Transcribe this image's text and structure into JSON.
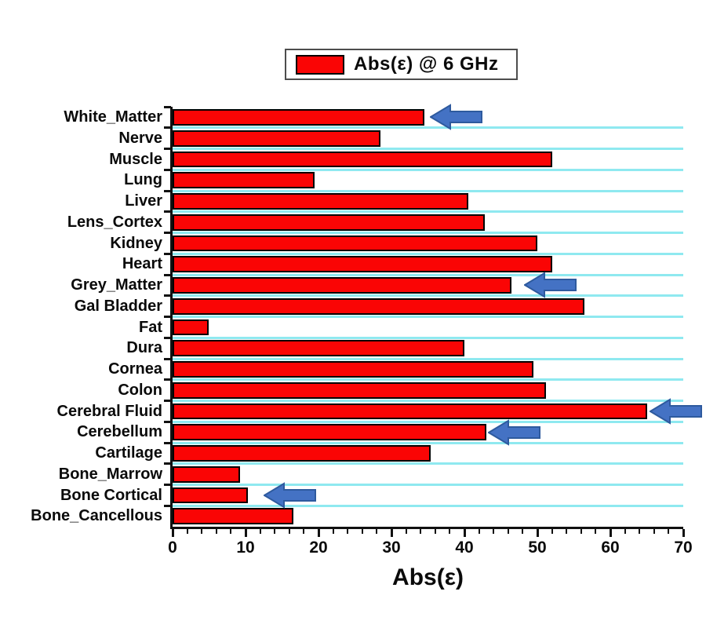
{
  "legend": {
    "label": "Abs(ε) @ 6 GHz",
    "swatch_color": "#fa0505"
  },
  "xaxis": {
    "label": "Abs(ε)",
    "min": 0,
    "max": 70,
    "major_ticks": [
      0,
      10,
      20,
      30,
      40,
      50,
      60,
      70
    ],
    "minor_tick_step": 2
  },
  "colors": {
    "bar_fill": "#fa0505",
    "bar_border": "#000000",
    "gridline": "#8fe9f0",
    "arrow_fill": "#4472c4",
    "arrow_stroke": "#2e5a9e",
    "axis": "#111111"
  },
  "chart_data": {
    "type": "bar",
    "orientation": "horizontal",
    "series_name": "Abs(ε) @ 6 GHz",
    "xlabel": "Abs(ε)",
    "xlim": [
      0,
      70
    ],
    "grid": "horizontal-cyan-lines-between-categories",
    "legend_position": "top-center",
    "categories": [
      "White_Matter",
      "Nerve",
      "Muscle",
      "Lung",
      "Liver",
      "Lens_Cortex",
      "Kidney",
      "Heart",
      "Grey_Matter",
      "Gal Bladder",
      "Fat",
      "Dura",
      "Cornea",
      "Colon",
      "Cerebral Fluid",
      "Cerebellum",
      "Cartilage",
      "Bone_Marrow",
      "Bone Cortical",
      "Bone_Cancellous"
    ],
    "values": [
      34.5,
      28.5,
      52,
      19.5,
      40.5,
      42.8,
      50,
      52,
      46.5,
      56.4,
      4.9,
      40,
      49.5,
      51.2,
      65,
      43,
      35.4,
      9.3,
      10.3,
      16.6
    ],
    "arrows": [
      {
        "category": "White_Matter",
        "tip_value": 35.6
      },
      {
        "category": "Grey_Matter",
        "tip_value": 48.5
      },
      {
        "category": "Cerebral Fluid",
        "tip_value": 65.7
      },
      {
        "category": "Cerebellum",
        "tip_value": 43.5
      },
      {
        "category": "Bone Cortical",
        "tip_value": 12.8
      }
    ],
    "arrow_length_value": 7.2
  }
}
